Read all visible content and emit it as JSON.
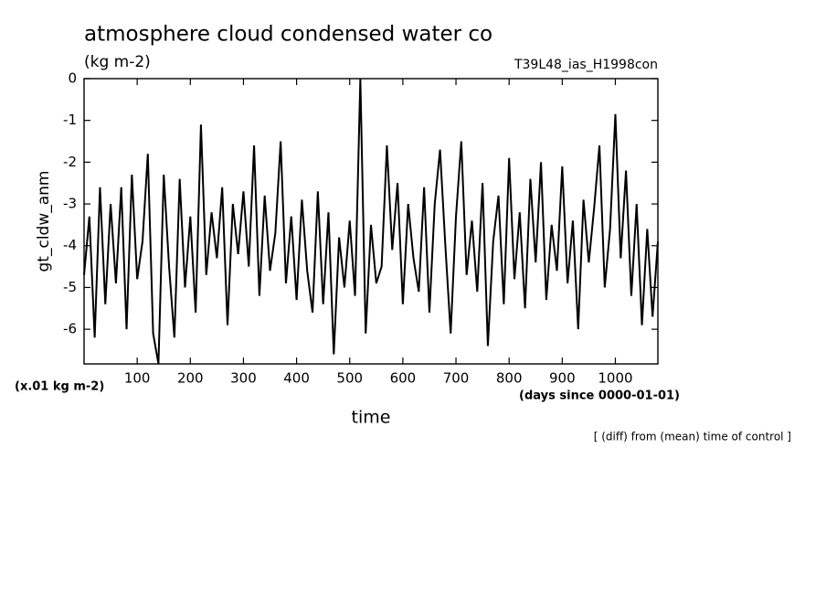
{
  "chart_data": {
    "type": "line",
    "title": "atmosphere cloud condensed water co",
    "subtitle": "(kg m-2)",
    "run_label": "T39L48_ias_H1998con",
    "y_label": "gt_cldw_anm",
    "y_unit": "(x.01 kg m-2)",
    "x_label": "time",
    "x_unit": "(days since 0000-01-01)",
    "note": "[ (diff) from (mean) time of control ]",
    "xlim": [
      0,
      1080
    ],
    "ylim": [
      -6.83,
      0
    ],
    "xticks": [
      100,
      200,
      300,
      400,
      500,
      600,
      700,
      800,
      900,
      1000
    ],
    "yticks": [
      0,
      -1,
      -2,
      -3,
      -4,
      -5,
      -6
    ],
    "color": "#000000",
    "x": [
      0,
      10,
      20,
      30,
      40,
      50,
      60,
      70,
      80,
      90,
      100,
      110,
      120,
      130,
      140,
      150,
      160,
      170,
      180,
      190,
      200,
      210,
      220,
      230,
      240,
      250,
      260,
      270,
      280,
      290,
      300,
      310,
      320,
      330,
      340,
      350,
      360,
      370,
      380,
      390,
      400,
      410,
      420,
      430,
      440,
      450,
      460,
      470,
      480,
      490,
      500,
      510,
      520,
      530,
      540,
      550,
      560,
      570,
      580,
      590,
      600,
      610,
      620,
      630,
      640,
      650,
      660,
      670,
      680,
      690,
      700,
      710,
      720,
      730,
      740,
      750,
      760,
      770,
      780,
      790,
      800,
      810,
      820,
      830,
      840,
      850,
      860,
      870,
      880,
      890,
      900,
      910,
      920,
      930,
      940,
      950,
      960,
      970,
      980,
      990,
      1000,
      1010,
      1020,
      1030,
      1040,
      1050,
      1060,
      1070,
      1080
    ],
    "values": [
      -4.7,
      -3.3,
      -6.2,
      -2.6,
      -5.4,
      -3.0,
      -4.9,
      -2.6,
      -6.0,
      -2.3,
      -4.8,
      -3.9,
      -1.8,
      -6.1,
      -6.83,
      -2.3,
      -4.5,
      -6.2,
      -2.4,
      -5.0,
      -3.3,
      -5.6,
      -1.1,
      -4.7,
      -3.2,
      -4.3,
      -2.6,
      -5.9,
      -3.0,
      -4.2,
      -2.7,
      -4.5,
      -1.6,
      -5.2,
      -2.8,
      -4.6,
      -3.7,
      -1.5,
      -4.9,
      -3.3,
      -5.3,
      -2.9,
      -4.6,
      -5.6,
      -2.7,
      -5.4,
      -3.2,
      -6.6,
      -3.8,
      -5.0,
      -3.4,
      -5.2,
      0,
      -6.1,
      -3.5,
      -4.9,
      -4.5,
      -1.6,
      -4.1,
      -2.5,
      -5.4,
      -3.0,
      -4.3,
      -5.1,
      -2.6,
      -5.6,
      -3.0,
      -1.7,
      -4.0,
      -6.1,
      -3.3,
      -1.5,
      -4.7,
      -3.4,
      -5.1,
      -2.5,
      -6.4,
      -3.9,
      -2.8,
      -5.4,
      -1.9,
      -4.8,
      -3.2,
      -5.5,
      -2.4,
      -4.4,
      -2.0,
      -5.3,
      -3.5,
      -4.6,
      -2.1,
      -4.9,
      -3.4,
      -6.0,
      -2.9,
      -4.4,
      -3.1,
      -1.6,
      -5.0,
      -3.6,
      -0.85,
      -4.3,
      -2.2,
      -5.2,
      -3.0,
      -5.9,
      -3.6,
      -5.7,
      -3.9
    ]
  }
}
